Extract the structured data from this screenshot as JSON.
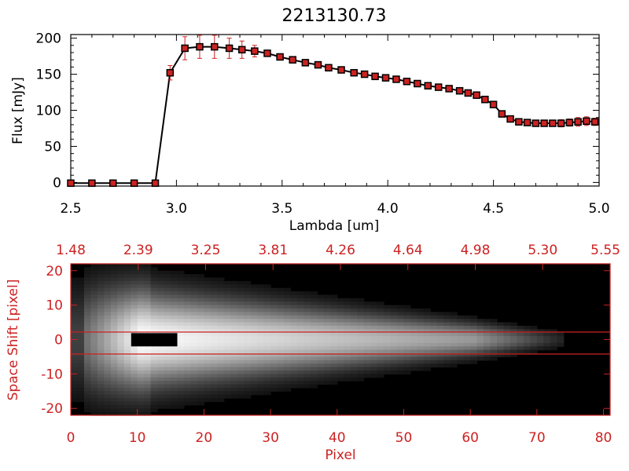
{
  "chart_data": [
    {
      "type": "line",
      "title": "2213130.73",
      "xlabel": "Lambda [um]",
      "ylabel": "Flux [mJy]",
      "xlim": [
        2.5,
        5.0
      ],
      "ylim": [
        -5,
        205
      ],
      "xticks": [
        "2.5",
        "3.0",
        "3.5",
        "4.0",
        "4.5",
        "5.0"
      ],
      "yticks": [
        "0",
        "50",
        "100",
        "150",
        "200"
      ],
      "colors": {
        "line": "#000000",
        "marker": "#cc2222",
        "errorbar": "#cc2222"
      },
      "series": [
        {
          "x": [
            2.5,
            2.6,
            2.7,
            2.8,
            2.9,
            2.97,
            3.04,
            3.11,
            3.18,
            3.25,
            3.31,
            3.37,
            3.43,
            3.49,
            3.55,
            3.61,
            3.67,
            3.72,
            3.78,
            3.84,
            3.89,
            3.94,
            3.99,
            4.04,
            4.09,
            4.14,
            4.19,
            4.24,
            4.29,
            4.34,
            4.38,
            4.42,
            4.46,
            4.5,
            4.54,
            4.58,
            4.62,
            4.66,
            4.7,
            4.74,
            4.78,
            4.82,
            4.86,
            4.9,
            4.94,
            4.98
          ],
          "y": [
            -1,
            -1,
            -1,
            -1,
            -1,
            152,
            186,
            188,
            188,
            186,
            184,
            182,
            179,
            174,
            170,
            166,
            163,
            159,
            156,
            152,
            150,
            147,
            145,
            143,
            140,
            137,
            134,
            132,
            130,
            127,
            124,
            121,
            115,
            108,
            95,
            88,
            84,
            83,
            82,
            82,
            82,
            82,
            83,
            84,
            85,
            84
          ],
          "err": [
            0,
            0,
            0,
            0,
            0,
            10,
            16,
            16,
            16,
            14,
            12,
            8,
            4,
            3,
            3,
            3,
            3,
            3,
            3,
            3,
            3,
            3,
            3,
            3,
            3,
            3,
            3,
            3,
            3,
            3,
            3,
            3,
            3,
            3,
            3,
            3,
            3,
            3,
            3,
            3,
            4,
            5,
            5,
            6,
            6,
            5
          ]
        }
      ]
    },
    {
      "type": "heatmap",
      "xlabel": "Pixel",
      "ylabel": "Space Shift [pixel]",
      "xlim": [
        0,
        81
      ],
      "ylim": [
        -22,
        22
      ],
      "xticks": [
        "0",
        "10",
        "20",
        "30",
        "40",
        "50",
        "60",
        "70",
        "80"
      ],
      "yticks": [
        "-20",
        "-10",
        "0",
        "10",
        "20"
      ],
      "top_axis_ticks": [
        "1.48",
        "2.39",
        "3.25",
        "3.81",
        "4.26",
        "4.64",
        "4.98",
        "5.30",
        "5.55"
      ],
      "aperture_rows": [
        -3,
        3
      ],
      "colors": {
        "axis": "#cc2222",
        "aperture": "#cc2222",
        "colormap": "grayscale"
      }
    }
  ]
}
